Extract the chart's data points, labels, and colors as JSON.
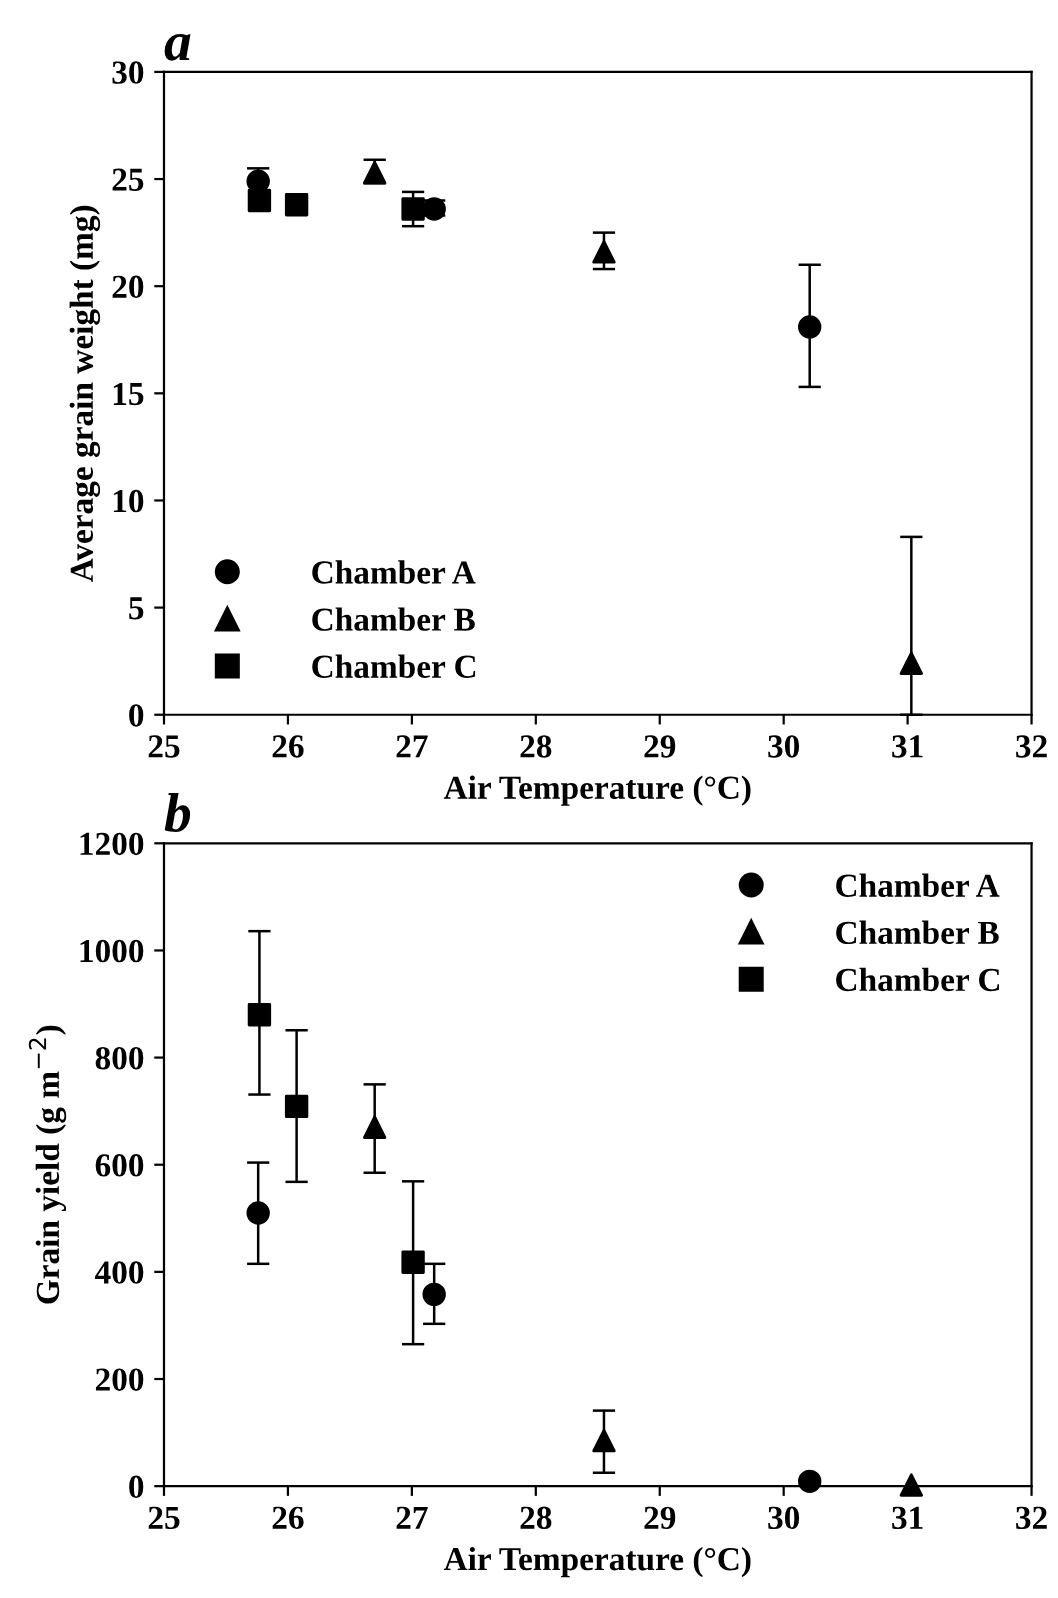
{
  "chart_data": [
    {
      "type": "scatter",
      "title": "a",
      "xlabel": "Air Temperature (°C)",
      "ylabel": "Average grain weight (mg)",
      "xlim": [
        25,
        32
      ],
      "xticks": [
        25,
        26,
        27,
        28,
        29,
        30,
        31,
        32
      ],
      "ylim": [
        0,
        30
      ],
      "yticks": [
        0,
        5,
        10,
        15,
        20,
        25,
        30
      ],
      "legend": "bottom left",
      "grid": false,
      "series": [
        {
          "name": "Chamber A",
          "color": "#000000",
          "marker": "circle",
          "x": [
            25.76,
            27.18,
            30.21
          ],
          "values": [
            24.9,
            23.6,
            18.1
          ],
          "errors": [
            [
              24.9,
              25.5
            ],
            [
              23.3,
              24.0
            ],
            [
              15.3,
              21.0
            ]
          ]
        },
        {
          "name": "Chamber B",
          "color": "#000000",
          "marker": "triangle",
          "x": [
            26.7,
            28.55,
            31.03
          ],
          "values": [
            25.3,
            21.6,
            2.4
          ],
          "errors": [
            [
              24.8,
              25.9
            ],
            [
              20.8,
              22.5
            ],
            [
              0,
              8.3
            ]
          ]
        },
        {
          "name": "Chamber C",
          "color": "#000000",
          "marker": "square",
          "x": [
            25.77,
            26.07,
            27.01
          ],
          "values": [
            24.0,
            23.8,
            23.6
          ],
          "errors": [
            null,
            null,
            [
              22.8,
              24.4
            ]
          ]
        }
      ]
    },
    {
      "type": "scatter",
      "title": "b",
      "xlabel": "Air Temperature (°C)",
      "ylabel": "Grain yield (g m$^{−2}$)",
      "xlim": [
        25,
        32
      ],
      "xticks": [
        25,
        26,
        27,
        28,
        29,
        30,
        31,
        32
      ],
      "ylim": [
        0,
        1200
      ],
      "yticks": [
        0,
        200,
        400,
        600,
        800,
        1000,
        1200
      ],
      "legend": "top right",
      "grid": false,
      "series": [
        {
          "name": "Chamber A",
          "color": "#000000",
          "marker": "circle",
          "x": [
            25.76,
            27.18,
            30.21
          ],
          "values": [
            510,
            358,
            9
          ],
          "errors": [
            [
              415,
              604
            ],
            [
              303,
              415
            ],
            null
          ]
        },
        {
          "name": "Chamber B",
          "color": "#000000",
          "marker": "triangle",
          "x": [
            26.7,
            28.55,
            31.03
          ],
          "values": [
            670,
            85,
            2
          ],
          "errors": [
            [
              585,
              750
            ],
            [
              25,
              141
            ],
            null
          ]
        },
        {
          "name": "Chamber C",
          "color": "#000000",
          "marker": "square",
          "x": [
            25.77,
            26.07,
            27.01
          ],
          "values": [
            880,
            709,
            418
          ],
          "errors": [
            [
              731,
              1036
            ],
            [
              568,
              851
            ],
            [
              265,
              569
            ]
          ]
        }
      ]
    }
  ]
}
